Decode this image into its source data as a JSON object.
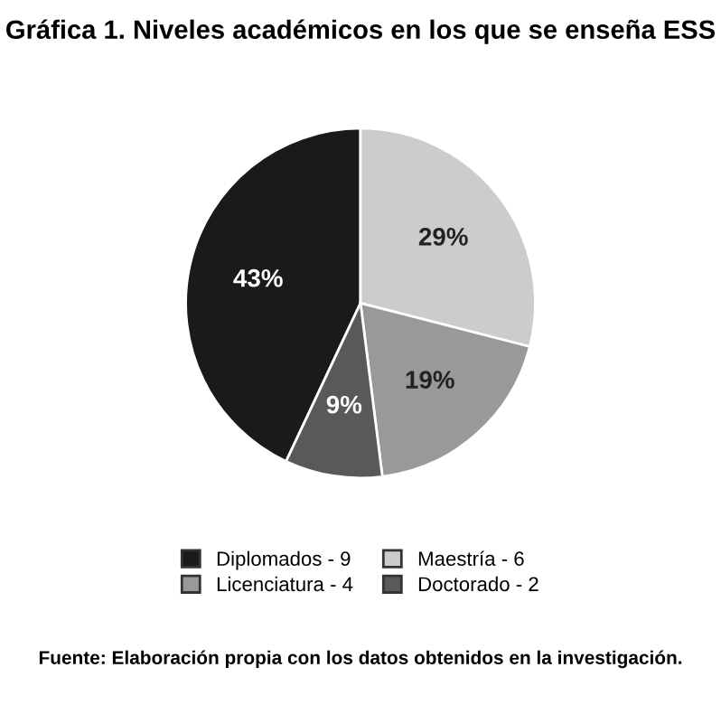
{
  "chart_data": {
    "type": "pie",
    "title": "Gráfica 1. Niveles académicos en los que se enseña ESS",
    "categories": [
      "Diplomados - 9",
      "Maestría - 6",
      "Licenciatura - 4",
      "Doctorado - 2"
    ],
    "values": [
      43,
      29,
      19,
      9
    ],
    "colors": [
      "#1a1a1a",
      "#cccccc",
      "#999999",
      "#595959"
    ],
    "value_labels": [
      "43%",
      "29%",
      "19%",
      "9%"
    ],
    "legend": "bottom",
    "annotations": [
      "Fuente: Elaboración propia con los datos obtenidos en la investigación."
    ]
  }
}
